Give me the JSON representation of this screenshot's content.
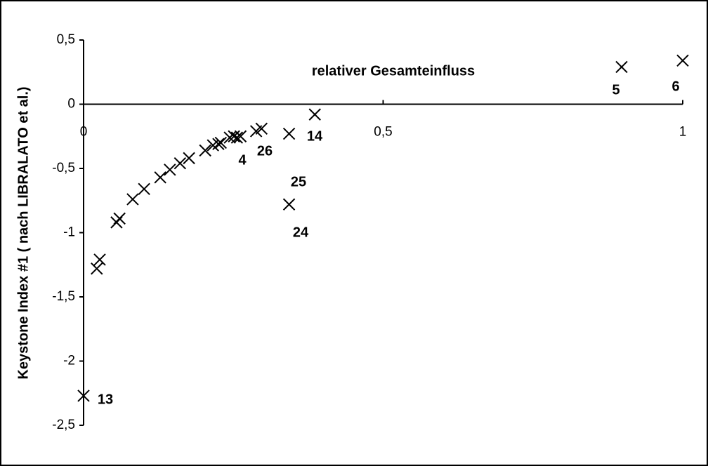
{
  "chart_data": {
    "type": "scatter",
    "title": "relativer Gesamteinfluss",
    "y_label": "Keystone Index #1 ( nach LIBRALATO et al.)",
    "x": [
      0,
      0.022,
      0.027,
      0.055,
      0.06,
      0.082,
      0.101,
      0.128,
      0.144,
      0.161,
      0.176,
      0.203,
      0.216,
      0.225,
      0.229,
      0.244,
      0.251,
      0.256,
      0.262,
      0.288,
      0.297,
      0.343,
      0.386,
      0.343,
      0.898,
      1.0
    ],
    "values": [
      -2.27,
      -1.28,
      -1.21,
      -0.92,
      -0.89,
      -0.74,
      -0.66,
      -0.57,
      -0.51,
      -0.46,
      -0.42,
      -0.36,
      -0.32,
      -0.31,
      -0.3,
      -0.26,
      -0.25,
      -0.26,
      -0.25,
      -0.21,
      -0.19,
      -0.23,
      -0.08,
      -0.78,
      0.29,
      0.34
    ],
    "color": "#000000",
    "annotations": [
      "13",
      "4",
      "26",
      "14",
      "25",
      "24",
      "5",
      "6"
    ],
    "xlim": [
      0,
      1
    ],
    "ylim": [
      -2.5,
      0.5
    ],
    "xticks": [
      0,
      {
        "value": 0.5,
        "label": "0,5"
      },
      1
    ],
    "yticks": [
      {
        "value": 0.5,
        "label": "0,5"
      },
      0,
      {
        "value": -0.5,
        "label": "-0,5"
      },
      -1,
      {
        "value": -1.5,
        "label": "-1,5"
      },
      -2,
      {
        "value": -2.5,
        "label": "-2,5"
      }
    ]
  }
}
